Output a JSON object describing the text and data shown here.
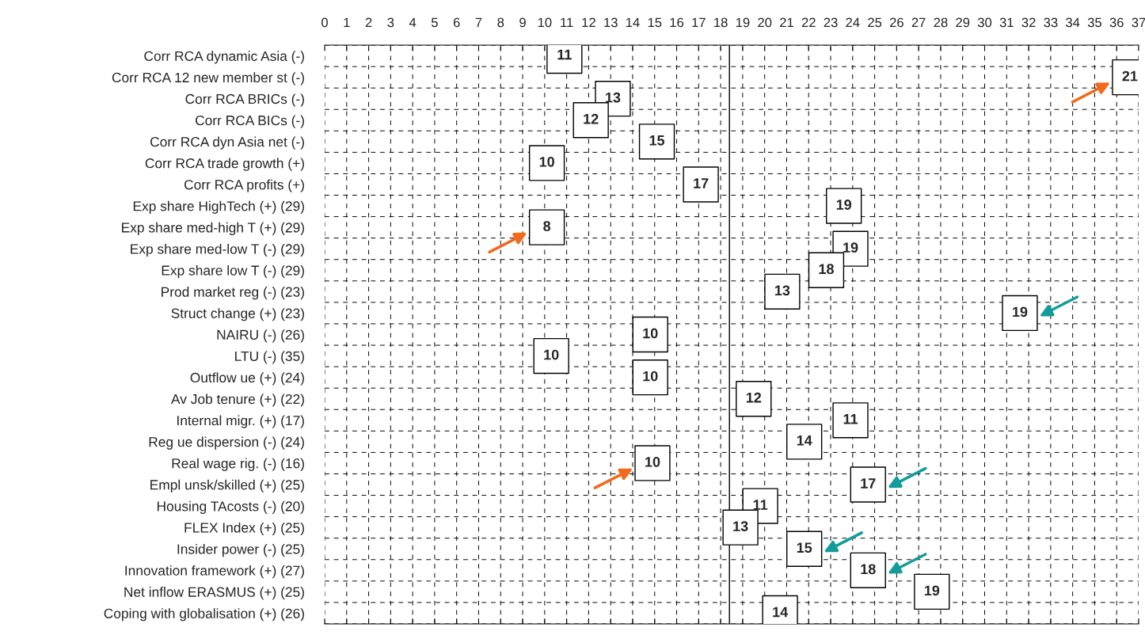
{
  "chart_data": {
    "type": "scatter",
    "categories": [
      "Corr RCA dynamic Asia (-)",
      "Corr RCA 12 new member st (-)",
      "Corr RCA BRICs (-)",
      "Corr RCA BICs (-)",
      "Corr RCA dyn Asia net (-)",
      "Corr RCA trade growth (+)",
      "Corr RCA profits (+)",
      "Exp share HighTech (+) (29)",
      "Exp share med-high T (+) (29)",
      "Exp share med-low T (-) (29)",
      "Exp share low T (-) (29)",
      "Prod market reg (-) (23)",
      "Struct change (+) (23)",
      "NAIRU (-) (26)",
      "LTU (-) (35)",
      "Outflow ue (+) (24)",
      "Av Job tenure (+) (22)",
      "Internal migr. (+) (17)",
      "Reg ue dispersion (-) (24)",
      "Real wage rig. (-) (16)",
      "Empl unsk/skilled (+) (25)",
      "Housing TAcosts (-) (20)",
      "FLEX Index (+) (25)",
      "Insider power (-) (25)",
      "Innovation framework (+) (27)",
      "Net inflow ERASMUS (+) (25)",
      "Coping with globalisation (+) (26)"
    ],
    "values": [
      10.9,
      36.6,
      13.1,
      12.1,
      15.1,
      10.1,
      17.1,
      23.6,
      10.1,
      23.9,
      22.8,
      20.8,
      31.6,
      14.8,
      10.3,
      14.8,
      19.5,
      23.9,
      21.8,
      14.9,
      24.7,
      19.8,
      18.9,
      21.8,
      24.7,
      27.6,
      20.7
    ],
    "annotations": [
      {
        "text": "11",
        "x": 10.9,
        "y": "Corr RCA dynamic Asia (-)"
      },
      {
        "text": "21",
        "x": 36.6,
        "y": "Corr RCA 12 new member st (-)"
      },
      {
        "text": "13",
        "x": 13.1,
        "y": "Corr RCA BRICs (-)"
      },
      {
        "text": "12",
        "x": 12.1,
        "y": "Corr RCA BICs (-)"
      },
      {
        "text": "15",
        "x": 15.1,
        "y": "Corr RCA dyn Asia net (-)"
      },
      {
        "text": "10",
        "x": 10.1,
        "y": "Corr RCA trade growth (+)"
      },
      {
        "text": "17",
        "x": 17.1,
        "y": "Corr RCA profits (+)"
      },
      {
        "text": "19",
        "x": 23.6,
        "y": "Exp share HighTech (+) (29)"
      },
      {
        "text": "8",
        "x": 10.1,
        "y": "Exp share med-high T (+) (29)"
      },
      {
        "text": "19",
        "x": 23.9,
        "y": "Exp share med-low T (-) (29)"
      },
      {
        "text": "18",
        "x": 22.8,
        "y": "Exp share low T (-) (29)"
      },
      {
        "text": "13",
        "x": 20.8,
        "y": "Prod market reg (-) (23)"
      },
      {
        "text": "19",
        "x": 31.6,
        "y": "Struct change (+) (23)"
      },
      {
        "text": "10",
        "x": 14.8,
        "y": "NAIRU (-) (26)"
      },
      {
        "text": "10",
        "x": 10.3,
        "y": "LTU (-) (35)"
      },
      {
        "text": "10",
        "x": 14.8,
        "y": "Outflow ue (+) (24)"
      },
      {
        "text": "12",
        "x": 19.5,
        "y": "Av Job tenure (+) (22)"
      },
      {
        "text": "11",
        "x": 23.9,
        "y": "Internal migr. (+) (17)"
      },
      {
        "text": "14",
        "x": 21.8,
        "y": "Reg ue dispersion (-) (24)"
      },
      {
        "text": "10",
        "x": 14.9,
        "y": "Real wage rig. (-) (16)"
      },
      {
        "text": "17",
        "x": 24.7,
        "y": "Empl unsk/skilled (+) (25)"
      },
      {
        "text": "11",
        "x": 19.8,
        "y": "Housing TAcosts (-) (20)"
      },
      {
        "text": "13",
        "x": 18.9,
        "y": "FLEX Index (+) (25)"
      },
      {
        "text": "15",
        "x": 21.8,
        "y": "Insider power (-) (25)"
      },
      {
        "text": "18",
        "x": 24.7,
        "y": "Innovation framework (+) (27)"
      },
      {
        "text": "19",
        "x": 27.6,
        "y": "Net inflow ERASMUS (+) (25)"
      },
      {
        "text": "14",
        "x": 20.7,
        "y": "Coping with globalisation (+) (26)"
      }
    ],
    "orientation": "horizontal",
    "color": "#ffffff",
    "marker": "square",
    "xlim": [
      0,
      37
    ],
    "xticks": [
      0,
      1,
      2,
      3,
      4,
      5,
      6,
      7,
      8,
      9,
      10,
      11,
      12,
      13,
      14,
      15,
      16,
      17,
      18,
      19,
      20,
      21,
      22,
      23,
      24,
      25,
      26,
      27,
      28,
      29,
      30,
      31,
      32,
      33,
      34,
      35,
      36,
      37
    ],
    "ref_lines": [
      {
        "axis": "x",
        "value": 18.4,
        "color": "#000000",
        "line_style": "solid"
      }
    ],
    "grid": true
  }
}
